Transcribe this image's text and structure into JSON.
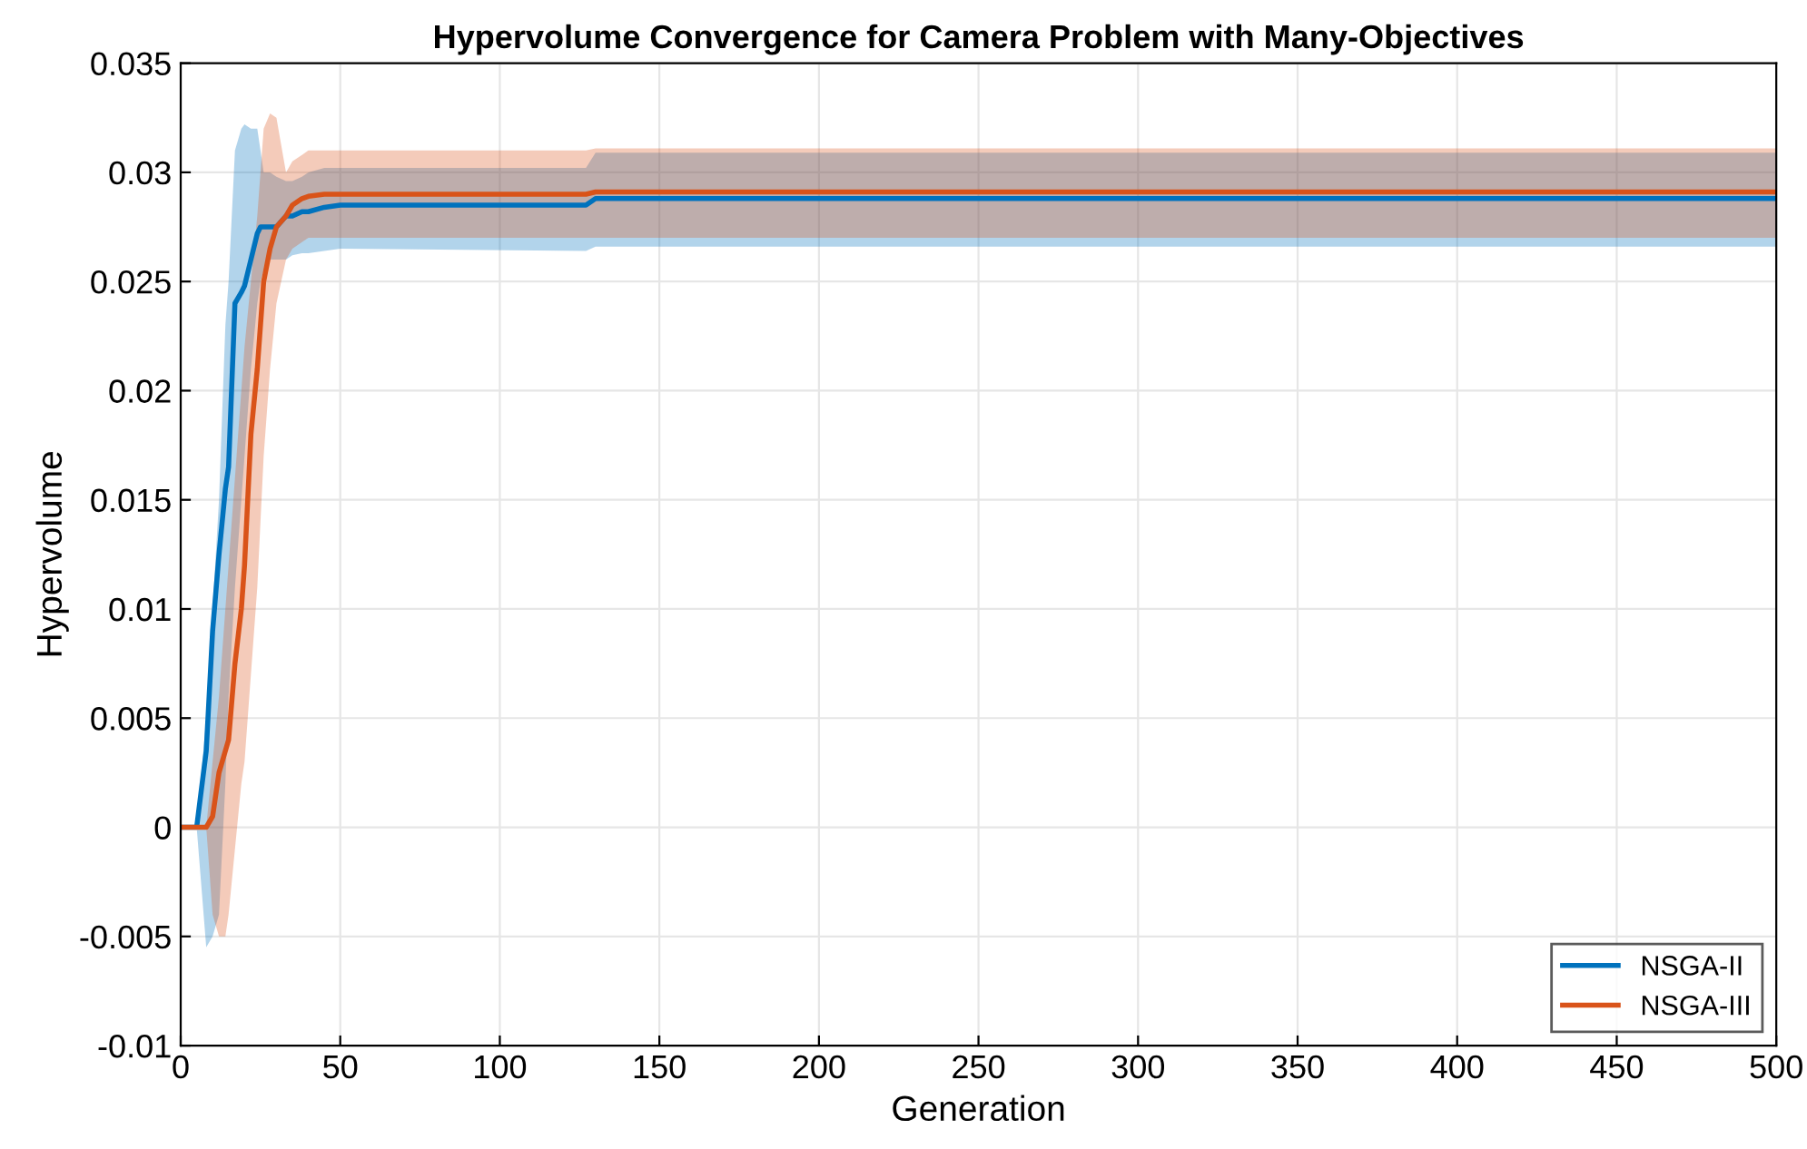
{
  "chart_data": {
    "type": "line",
    "title": "Hypervolume Convergence for Camera Problem with Many-Objectives",
    "xlabel": "Generation",
    "ylabel": "Hypervolume",
    "x": [
      0,
      5,
      8,
      10,
      12,
      14,
      15,
      17,
      19,
      20,
      22,
      24,
      25,
      26,
      28,
      30,
      33,
      35,
      38,
      40,
      45,
      50,
      127,
      130,
      500
    ],
    "series": [
      {
        "name": "NSGA-II",
        "color": "#0072bd",
        "values": [
          0,
          0,
          0.0035,
          0.009,
          0.0125,
          0.0155,
          0.0165,
          0.024,
          0.0245,
          0.0248,
          0.026,
          0.0272,
          0.0275,
          0.0275,
          0.0275,
          0.0275,
          0.028,
          0.028,
          0.0282,
          0.0282,
          0.0284,
          0.0285,
          0.0285,
          0.0288,
          0.0288
        ],
        "lower": [
          0,
          0,
          -0.0055,
          -0.005,
          -0.004,
          0.002,
          0.006,
          0.011,
          0.015,
          0.017,
          0.021,
          0.024,
          0.025,
          0.0255,
          0.026,
          0.026,
          0.026,
          0.0262,
          0.0263,
          0.0263,
          0.0264,
          0.0265,
          0.0264,
          0.0266,
          0.0266
        ],
        "upper": [
          0,
          0,
          0.005,
          0.01,
          0.015,
          0.023,
          0.025,
          0.031,
          0.032,
          0.0322,
          0.032,
          0.032,
          0.031,
          0.03,
          0.03,
          0.0298,
          0.0296,
          0.0296,
          0.0298,
          0.03,
          0.0302,
          0.0302,
          0.0302,
          0.0309,
          0.0309
        ]
      },
      {
        "name": "NSGA-III",
        "color": "#d95319",
        "values": [
          0,
          0,
          0,
          0.0005,
          0.0025,
          0.0035,
          0.004,
          0.0075,
          0.01,
          0.012,
          0.018,
          0.021,
          0.023,
          0.025,
          0.0265,
          0.0275,
          0.028,
          0.0285,
          0.0288,
          0.0289,
          0.029,
          0.029,
          0.029,
          0.0291,
          0.0291
        ],
        "lower": [
          0,
          0,
          0,
          -0.004,
          -0.005,
          -0.005,
          -0.004,
          -0.001,
          0.002,
          0.003,
          0.007,
          0.011,
          0.014,
          0.017,
          0.021,
          0.024,
          0.026,
          0.0265,
          0.0268,
          0.027,
          0.027,
          0.027,
          0.027,
          0.027,
          0.027
        ],
        "upper": [
          0,
          0,
          0,
          0.003,
          0.006,
          0.01,
          0.012,
          0.016,
          0.02,
          0.022,
          0.025,
          0.028,
          0.03,
          0.032,
          0.0327,
          0.0325,
          0.03,
          0.0305,
          0.0308,
          0.031,
          0.031,
          0.031,
          0.031,
          0.0311,
          0.0311
        ]
      }
    ],
    "xlim": [
      0,
      500
    ],
    "xticks": [
      0,
      50,
      100,
      150,
      200,
      250,
      300,
      350,
      400,
      450,
      500
    ],
    "ylim": [
      -0.01,
      0.035
    ],
    "yticks": [
      -0.01,
      -0.005,
      0,
      0.005,
      0.01,
      0.015,
      0.02,
      0.025,
      0.03,
      0.035
    ],
    "grid": true,
    "legend": "bottom right",
    "line_style": "solid",
    "marker": "none"
  }
}
